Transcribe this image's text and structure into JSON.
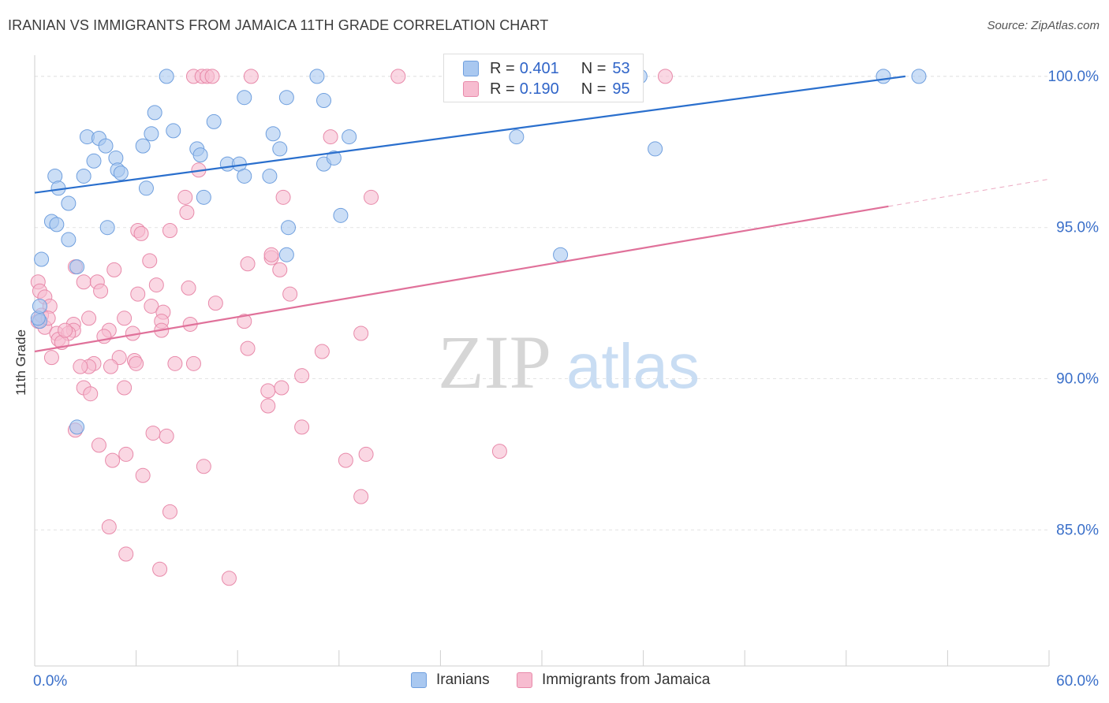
{
  "title": "IRANIAN VS IMMIGRANTS FROM JAMAICA 11TH GRADE CORRELATION CHART",
  "source": "Source: ZipAtlas.com",
  "watermark": {
    "zip": "ZIP",
    "atlas": "atlas"
  },
  "legend": {
    "rows": [
      {
        "r_label": "R =",
        "r_value": "0.401",
        "n_label": "N =",
        "n_value": "53",
        "color": "#a9c8f0",
        "stroke": "#6f9fde"
      },
      {
        "r_label": "R =",
        "r_value": "0.190",
        "n_label": "N =",
        "n_value": "95",
        "color": "#f7bcd0",
        "stroke": "#e88aaa"
      }
    ]
  },
  "bottom_legend": [
    {
      "label": "Iranians",
      "color": "#a9c8f0",
      "stroke": "#6f9fde"
    },
    {
      "label": "Immigrants from Jamaica",
      "color": "#f7bcd0",
      "stroke": "#e88aaa"
    }
  ],
  "chart_data": {
    "type": "scatter",
    "title": "IRANIAN VS IMMIGRANTS FROM JAMAICA 11TH GRADE CORRELATION CHART",
    "xlabel": "",
    "ylabel": "11th Grade",
    "xlim": [
      0,
      60
    ],
    "ylim": [
      80.5,
      100.7
    ],
    "x_tick_labels": [
      "0.0%",
      "60.0%"
    ],
    "y_ticks": [
      85,
      90,
      95,
      100
    ],
    "y_tick_labels": [
      "85.0%",
      "90.0%",
      "95.0%",
      "100.0%"
    ],
    "grid": true,
    "legend_position": "top-center",
    "series": [
      {
        "name": "Iranians",
        "color": "#6f9fde",
        "fill": "#a9c8f0",
        "trend": {
          "x": [
            0,
            51.5
          ],
          "y": [
            96.15,
            100.0
          ],
          "color": "#2a6fcd"
        },
        "points": [
          [
            7.8,
            100
          ],
          [
            16.7,
            100
          ],
          [
            35.8,
            100
          ],
          [
            50.2,
            100
          ],
          [
            52.3,
            100
          ],
          [
            12.4,
            99.3
          ],
          [
            14.9,
            99.3
          ],
          [
            14.1,
            98.1
          ],
          [
            17.1,
            99.2
          ],
          [
            7.1,
            98.8
          ],
          [
            8.2,
            98.2
          ],
          [
            10.6,
            98.5
          ],
          [
            3.1,
            98.0
          ],
          [
            3.8,
            97.95
          ],
          [
            6.9,
            98.1
          ],
          [
            4.2,
            97.7
          ],
          [
            6.4,
            97.7
          ],
          [
            9.6,
            97.6
          ],
          [
            18.6,
            98.0
          ],
          [
            28.5,
            98.0
          ],
          [
            36.7,
            97.6
          ],
          [
            3.5,
            97.2
          ],
          [
            4.8,
            97.3
          ],
          [
            11.4,
            97.1
          ],
          [
            12.1,
            97.1
          ],
          [
            4.9,
            96.9
          ],
          [
            5.1,
            96.8
          ],
          [
            2.9,
            96.7
          ],
          [
            12.4,
            96.7
          ],
          [
            13.9,
            96.7
          ],
          [
            17.1,
            97.1
          ],
          [
            17.7,
            97.3
          ],
          [
            1.2,
            96.7
          ],
          [
            1.4,
            96.3
          ],
          [
            6.6,
            96.3
          ],
          [
            10.0,
            96.0
          ],
          [
            2.0,
            95.8
          ],
          [
            1.0,
            95.2
          ],
          [
            4.3,
            95.0
          ],
          [
            1.3,
            95.1
          ],
          [
            15.0,
            95.0
          ],
          [
            18.1,
            95.4
          ],
          [
            2.0,
            94.6
          ],
          [
            14.9,
            94.1
          ],
          [
            31.1,
            94.1
          ],
          [
            0.4,
            93.95
          ],
          [
            2.5,
            93.7
          ],
          [
            0.3,
            91.9
          ],
          [
            2.5,
            88.4
          ],
          [
            0.2,
            92.0
          ],
          [
            9.8,
            97.4
          ],
          [
            14.5,
            97.6
          ],
          [
            0.3,
            92.4
          ]
        ]
      },
      {
        "name": "Immigrants from Jamaica",
        "color": "#e88aaa",
        "fill": "#f7bcd0",
        "trend": {
          "x": [
            0,
            50.5
          ],
          "y": [
            90.9,
            95.7
          ],
          "color": "#e0719a"
        },
        "trend_dashed": {
          "x": [
            50.5,
            60
          ],
          "y": [
            95.7,
            96.6
          ]
        },
        "points": [
          [
            9.4,
            100
          ],
          [
            9.9,
            100
          ],
          [
            10.2,
            100
          ],
          [
            12.8,
            100
          ],
          [
            21.5,
            100
          ],
          [
            37.3,
            100
          ],
          [
            10.5,
            100
          ],
          [
            17.5,
            98.0
          ],
          [
            9.7,
            96.9
          ],
          [
            8.9,
            96.0
          ],
          [
            14.7,
            96.0
          ],
          [
            19.9,
            96.0
          ],
          [
            9.0,
            95.5
          ],
          [
            6.1,
            94.9
          ],
          [
            8.0,
            94.9
          ],
          [
            6.3,
            94.8
          ],
          [
            12.6,
            93.8
          ],
          [
            14.0,
            94.0
          ],
          [
            14.5,
            93.6
          ],
          [
            6.8,
            93.9
          ],
          [
            2.4,
            93.7
          ],
          [
            4.7,
            93.6
          ],
          [
            0.2,
            93.2
          ],
          [
            0.3,
            92.9
          ],
          [
            2.9,
            93.2
          ],
          [
            3.7,
            93.2
          ],
          [
            7.2,
            93.1
          ],
          [
            9.1,
            93.0
          ],
          [
            3.9,
            92.9
          ],
          [
            0.6,
            92.7
          ],
          [
            6.1,
            92.8
          ],
          [
            15.1,
            92.8
          ],
          [
            10.7,
            92.5
          ],
          [
            0.9,
            92.4
          ],
          [
            6.9,
            92.4
          ],
          [
            7.6,
            92.2
          ],
          [
            3.2,
            92.0
          ],
          [
            5.3,
            92.0
          ],
          [
            7.5,
            91.9
          ],
          [
            9.2,
            91.8
          ],
          [
            12.4,
            91.9
          ],
          [
            2.3,
            91.8
          ],
          [
            0.6,
            91.7
          ],
          [
            1.3,
            91.5
          ],
          [
            4.4,
            91.6
          ],
          [
            5.8,
            91.5
          ],
          [
            2.3,
            91.6
          ],
          [
            1.4,
            91.3
          ],
          [
            2.0,
            91.5
          ],
          [
            7.5,
            91.6
          ],
          [
            19.3,
            91.5
          ],
          [
            1.6,
            91.2
          ],
          [
            12.6,
            91.0
          ],
          [
            17.0,
            90.9
          ],
          [
            1.0,
            90.7
          ],
          [
            5.0,
            90.7
          ],
          [
            5.9,
            90.6
          ],
          [
            6.0,
            90.5
          ],
          [
            3.5,
            90.5
          ],
          [
            3.2,
            90.4
          ],
          [
            8.3,
            90.5
          ],
          [
            9.4,
            90.5
          ],
          [
            2.7,
            90.4
          ],
          [
            4.5,
            90.4
          ],
          [
            15.8,
            90.1
          ],
          [
            13.8,
            89.6
          ],
          [
            14.6,
            89.7
          ],
          [
            2.9,
            89.7
          ],
          [
            5.3,
            89.7
          ],
          [
            3.3,
            89.5
          ],
          [
            13.8,
            89.1
          ],
          [
            15.8,
            88.4
          ],
          [
            2.4,
            88.3
          ],
          [
            7.0,
            88.2
          ],
          [
            7.8,
            88.1
          ],
          [
            3.8,
            87.8
          ],
          [
            5.4,
            87.5
          ],
          [
            18.4,
            87.3
          ],
          [
            19.6,
            87.5
          ],
          [
            27.5,
            87.6
          ],
          [
            4.6,
            87.3
          ],
          [
            10.0,
            87.1
          ],
          [
            6.4,
            86.8
          ],
          [
            19.3,
            86.1
          ],
          [
            8.0,
            85.6
          ],
          [
            4.4,
            85.1
          ],
          [
            5.4,
            84.2
          ],
          [
            7.4,
            83.7
          ],
          [
            11.5,
            83.4
          ],
          [
            0.2,
            91.9
          ],
          [
            0.4,
            92.1
          ],
          [
            4.1,
            91.4
          ],
          [
            0.8,
            92.0
          ],
          [
            1.8,
            91.6
          ],
          [
            14.0,
            94.1
          ]
        ]
      }
    ]
  }
}
